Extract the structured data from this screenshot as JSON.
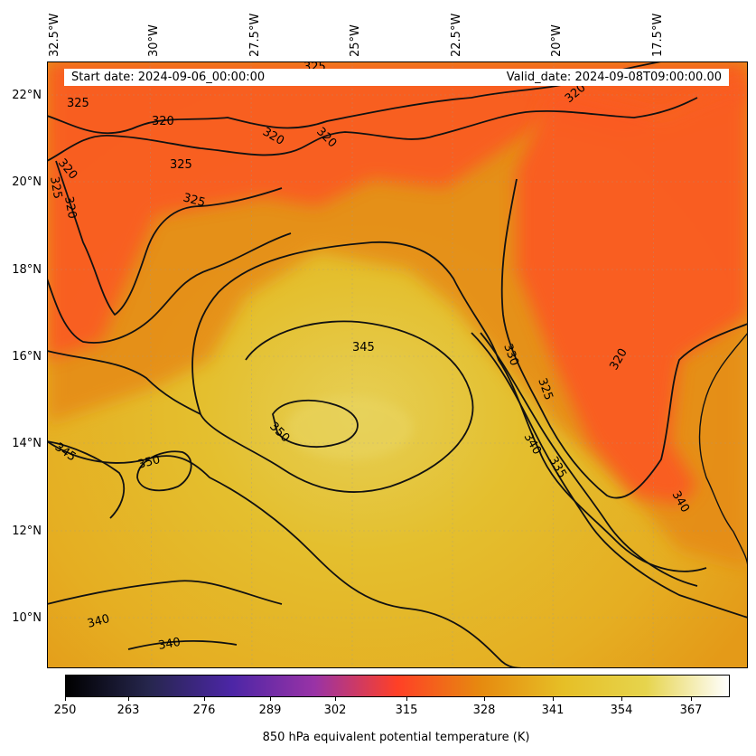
{
  "map": {
    "lon_ticks": [
      "32.5°W",
      "30°W",
      "27.5°W",
      "25°W",
      "22.5°W",
      "20°W",
      "17.5°W"
    ],
    "lat_ticks": [
      "22°N",
      "20°N",
      "18°N",
      "16°N",
      "14°N",
      "12°N",
      "10°N"
    ],
    "start_date": "Start date: 2024-09-06_00:00:00",
    "valid_date": "Valid_date: 2024-09-08T09:00:00.00",
    "contour_labels": [
      "325",
      "325",
      "320",
      "320",
      "320",
      "320",
      "325",
      "320",
      "325",
      "325",
      "320",
      "330",
      "325",
      "320",
      "345",
      "350",
      "350",
      "345",
      "340",
      "335",
      "340",
      "340",
      "340"
    ],
    "colors": {
      "cold": "#ff5a1e",
      "warm": "#e3c03a",
      "mid": "#e98a0f"
    }
  },
  "colorbar": {
    "ticks": [
      "250",
      "263",
      "276",
      "289",
      "302",
      "315",
      "328",
      "341",
      "354",
      "367"
    ],
    "label": "850 hPa equivalent potential temperature (K)",
    "colormap": "CMRmap"
  }
}
